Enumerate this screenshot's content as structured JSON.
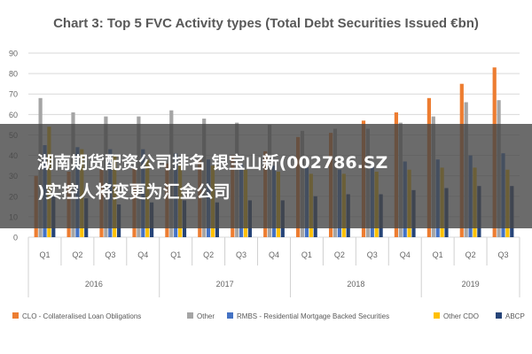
{
  "chart_data": {
    "type": "bar",
    "title": "Chart 3: Top 5 FVC Activity types (Total Debt Securities Issued €bn)",
    "xlabel": "",
    "ylabel": "",
    "ylim": [
      0,
      90
    ],
    "yticks": [
      "0",
      "10",
      "20",
      "30",
      "40",
      "50",
      "60",
      "70",
      "80",
      "90"
    ],
    "categories": [
      "Q1",
      "Q2",
      "Q3",
      "Q4",
      "Q1",
      "Q2",
      "Q3",
      "Q4",
      "Q1",
      "Q2",
      "Q3",
      "Q4",
      "Q1",
      "Q2",
      "Q3"
    ],
    "groups": [
      {
        "label": "2016",
        "count": 4
      },
      {
        "label": "2017",
        "count": 4
      },
      {
        "label": "2018",
        "count": 4
      },
      {
        "label": "2019",
        "count": 3
      }
    ],
    "grid": true,
    "legend_position": "bottom",
    "series": [
      {
        "name": "CLO - Collateralised Loan Obligations",
        "color": "#ED7D31",
        "values": [
          30,
          32,
          33,
          34,
          36,
          38,
          40,
          42,
          49,
          51,
          57,
          61,
          68,
          75,
          83
        ]
      },
      {
        "name": "Other",
        "color": "#A5A5A5",
        "values": [
          68,
          61,
          59,
          59,
          62,
          58,
          56,
          55,
          52,
          53,
          53,
          56,
          59,
          66,
          67
        ]
      },
      {
        "name": "RMBS - Residential Mortgage Backed Securities",
        "color": "#4472C4",
        "values": [
          45,
          44,
          43,
          43,
          41,
          38,
          36,
          35,
          34,
          33,
          35,
          37,
          38,
          40,
          41
        ]
      },
      {
        "name": "Other CDO",
        "color": "#FFC000",
        "values": [
          54,
          43,
          40,
          38,
          36,
          35,
          33,
          32,
          31,
          31,
          32,
          33,
          34,
          34,
          33
        ]
      },
      {
        "name": "ABCP",
        "color": "#264478",
        "values": [
          21,
          19,
          16,
          17,
          18,
          17,
          18,
          18,
          20,
          21,
          21,
          23,
          24,
          25,
          25
        ]
      }
    ]
  },
  "overlay": {
    "line1": "湖南期货配资公司排名 银宝山新(002786.SZ",
    "line2": ")实控人将变更为汇金公司"
  }
}
